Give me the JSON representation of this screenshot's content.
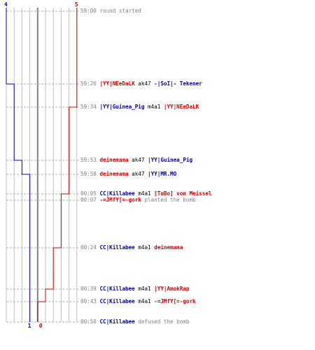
{
  "chart_data": {
    "type": "line",
    "title": "",
    "series": [
      {
        "name": "blue",
        "color": "#0000cc",
        "values": [
          4,
          4,
          3,
          3,
          2,
          1,
          1,
          1,
          1,
          1,
          1,
          1
        ]
      },
      {
        "name": "red",
        "color": "#cc0000",
        "values": [
          5,
          5,
          5,
          4,
          4,
          4,
          3,
          3,
          2,
          1,
          0,
          0
        ]
      }
    ],
    "start_labels": {
      "blue": "4",
      "red": "5"
    },
    "end_labels": {
      "blue": "1",
      "red": "0"
    },
    "events": [
      {
        "time": "59:00",
        "parts": [
          {
            "text": "round started",
            "cls": "act"
          }
        ]
      },
      {
        "time": "59:26",
        "parts": [
          {
            "text": "|YY|NEeDaLK",
            "cls": "red"
          },
          {
            "text": " ak47 ",
            "cls": "wep"
          },
          {
            "text": "-|SoI|- Tekener",
            "cls": "blue"
          }
        ]
      },
      {
        "time": "59:34",
        "parts": [
          {
            "text": "|YY|Guinea_Pig",
            "cls": "blue"
          },
          {
            "text": " m4a1 ",
            "cls": "wep"
          },
          {
            "text": "|YY|NEeDaLK",
            "cls": "red"
          }
        ]
      },
      {
        "time": "59:53",
        "parts": [
          {
            "text": "deinemama",
            "cls": "red"
          },
          {
            "text": " ak47 ",
            "cls": "wep"
          },
          {
            "text": "|YY|Guinea_Pig",
            "cls": "blue"
          }
        ]
      },
      {
        "time": "59:58",
        "parts": [
          {
            "text": "deinemama",
            "cls": "red"
          },
          {
            "text": " ak47 ",
            "cls": "wep"
          },
          {
            "text": "|YY|MR.MO",
            "cls": "blue"
          }
        ]
      },
      {
        "time": "00:05",
        "parts": [
          {
            "text": "CC|Killabee",
            "cls": "blue"
          },
          {
            "text": " m4a1 ",
            "cls": "wep"
          },
          {
            "text": "[ToBo] von Meissel",
            "cls": "red"
          }
        ]
      },
      {
        "time": "00:07",
        "parts": [
          {
            "text": "-=JMfY[=-gork",
            "cls": "red"
          },
          {
            "text": " planted the bomb",
            "cls": "act"
          }
        ]
      },
      {
        "time": "00:24",
        "parts": [
          {
            "text": "CC|Killabee",
            "cls": "blue"
          },
          {
            "text": " m4a1 ",
            "cls": "wep"
          },
          {
            "text": "deinemama",
            "cls": "red"
          }
        ]
      },
      {
        "time": "00:39",
        "parts": [
          {
            "text": "CC|Killabee",
            "cls": "blue"
          },
          {
            "text": " m4a1 ",
            "cls": "wep"
          },
          {
            "text": "|YY|AmokRap",
            "cls": "red"
          }
        ]
      },
      {
        "time": "00:43",
        "parts": [
          {
            "text": "CC|Killabee",
            "cls": "blue"
          },
          {
            "text": " m4a1 ",
            "cls": "wep"
          },
          {
            "text": "-=JMfY[=-gork",
            "cls": "red"
          }
        ]
      },
      {
        "time": "00:50",
        "parts": [
          {
            "text": "CC|Killabee",
            "cls": "blue"
          },
          {
            "text": " defused the bomb",
            "cls": "act"
          }
        ]
      }
    ]
  }
}
